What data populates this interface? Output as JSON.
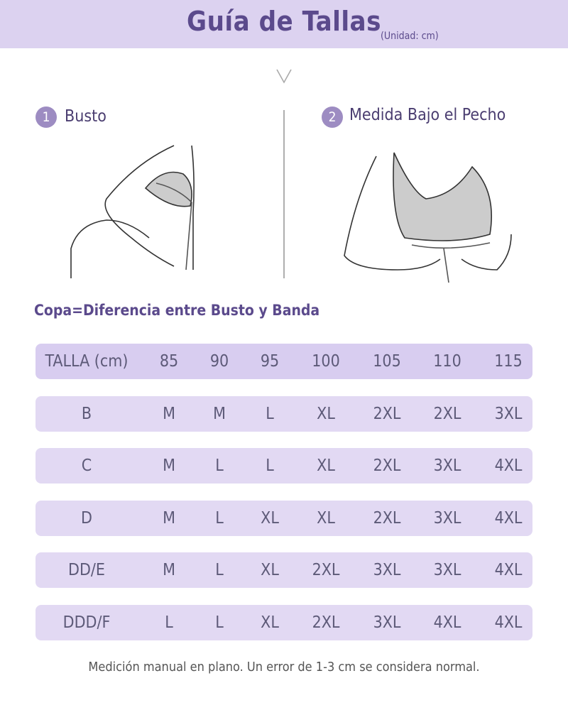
{
  "header": {
    "title": "Guía de Tallas",
    "unit": "(Unidad: cm)"
  },
  "steps": [
    {
      "number": "1",
      "label": "Busto"
    },
    {
      "number": "2",
      "label": "Medida Bajo el Pecho"
    }
  ],
  "subtitle": "Copa=Diferencia entre Busto y Banda",
  "table": {
    "header": [
      "TALLA (cm)",
      "85",
      "90",
      "95",
      "100",
      "105",
      "110",
      "115"
    ],
    "rows": [
      [
        "B",
        "M",
        "M",
        "L",
        "XL",
        "2XL",
        "2XL",
        "3XL"
      ],
      [
        "C",
        "M",
        "L",
        "L",
        "XL",
        "2XL",
        "3XL",
        "4XL"
      ],
      [
        "D",
        "M",
        "L",
        "XL",
        "XL",
        "2XL",
        "3XL",
        "4XL"
      ],
      [
        "DD/E",
        "M",
        "L",
        "XL",
        "2XL",
        "3XL",
        "3XL",
        "4XL"
      ],
      [
        "DDD/F",
        "L",
        "L",
        "XL",
        "2XL",
        "3XL",
        "4XL",
        "4XL"
      ]
    ]
  },
  "footnote": "Medición manual en plano. Un error de 1-3 cm se considera normal."
}
